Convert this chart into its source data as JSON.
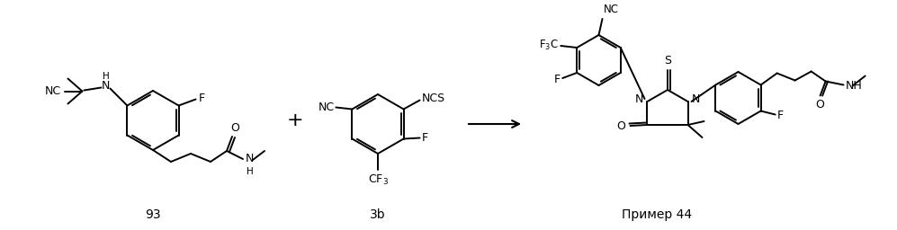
{
  "bg_color": "#ffffff",
  "label_93": "93",
  "label_3b": "3b",
  "label_primer44": "Пример 44",
  "fontsize_label": 10,
  "fig_width": 9.97,
  "fig_height": 2.56,
  "dpi": 100
}
